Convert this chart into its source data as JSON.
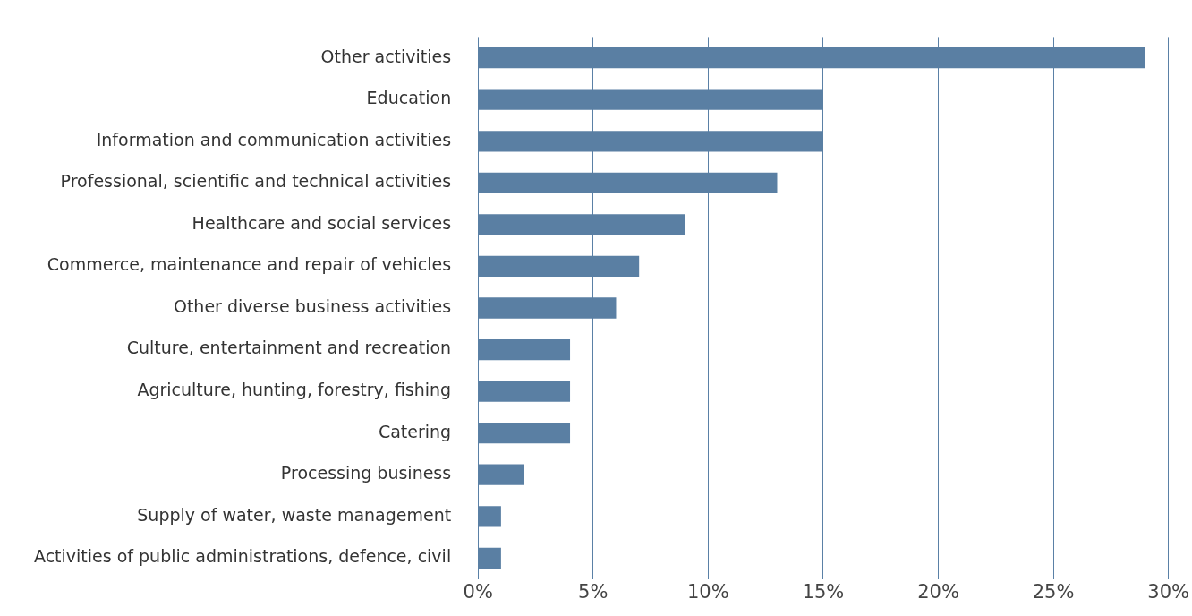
{
  "chart_data": {
    "type": "bar",
    "orientation": "horizontal",
    "categories": [
      "Other activities",
      "Education",
      "Information and communication activities",
      "Professional, scientific and technical activities",
      "Healthcare and social services",
      "Commerce, maintenance and repair of vehicles",
      "Other diverse business activities",
      "Culture, entertainment and recreation",
      "Agriculture, hunting, forestry, fishing",
      "Catering",
      "Processing business",
      "Supply of water, waste management",
      "Activities of public administrations, defence, civil"
    ],
    "values": [
      29,
      15,
      15,
      13,
      9,
      7,
      6,
      4,
      4,
      4,
      2,
      1,
      1
    ],
    "color": "#5a7fa3",
    "xlim": [
      0,
      30
    ],
    "xticks": [
      {
        "value": 0,
        "label": "0%"
      },
      {
        "value": 5,
        "label": "5%"
      },
      {
        "value": 10,
        "label": "10%"
      },
      {
        "value": 15,
        "label": "15%"
      },
      {
        "value": 20,
        "label": "20%"
      },
      {
        "value": 25,
        "label": "25%"
      },
      {
        "value": 30,
        "label": "30%"
      }
    ],
    "grid": "x",
    "legend": false
  }
}
